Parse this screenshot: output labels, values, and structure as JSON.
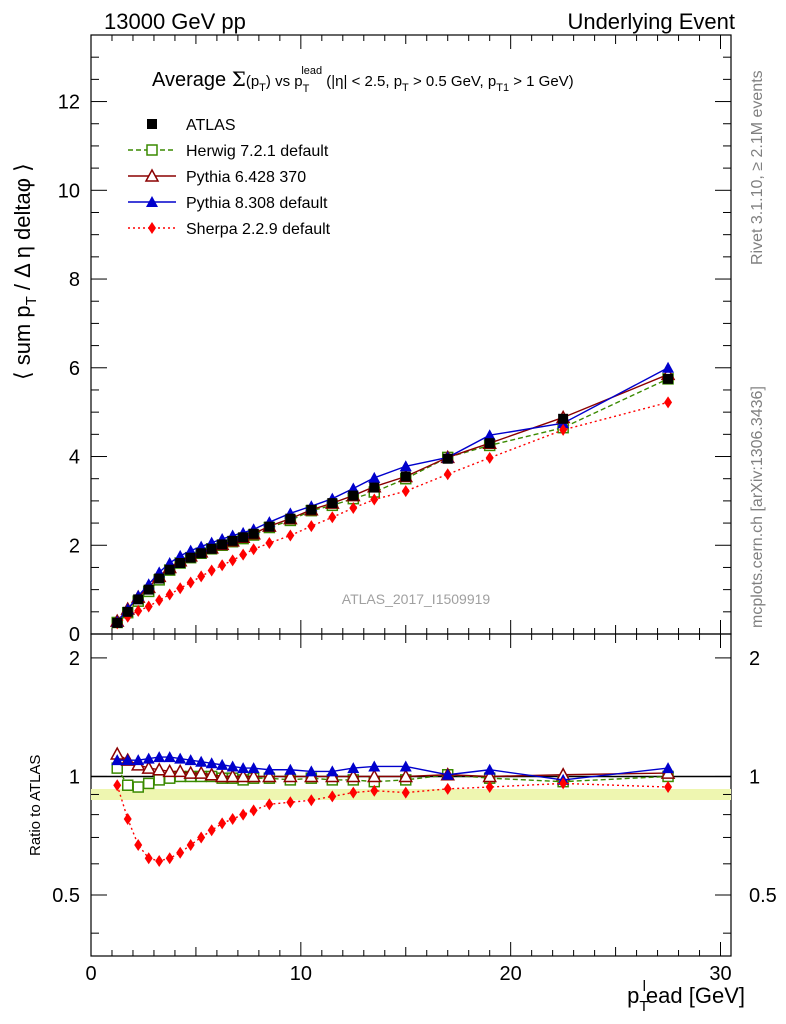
{
  "header": {
    "energy_label": "13000 GeV pp",
    "process_label": "Underlying Event"
  },
  "side_labels": {
    "rivet": "Rivet 3.1.10, ≥ 2.1M events",
    "mcplots": "mcplots.cern.ch [arXiv:1306.3436]"
  },
  "watermark": "ATLAS_2017_I1509919",
  "chart_data": [
    {
      "type": "line",
      "title": "Average Σ(p_T) vs p_T^lead (|η| < 2.5, p_T > 0.5 GeV, p_T1 > 1 GeV)",
      "title_parts": {
        "a": "Average ",
        "sigma": "Σ",
        "b": "(p",
        "b_sub": "T",
        "c": ") vs p",
        "c_sub": "T",
        "c_sup": "lead",
        "d": " (|η| < 2.5, p",
        "d_sub": "T",
        "e": " > 0.5 GeV, p",
        "e_sub": "T1",
        "f": " > 1 GeV)"
      },
      "ylabel": "⟨ sum p_T / Δη deltaφ ⟩",
      "ylabel_parts": {
        "a": "⟨ sum p",
        "sub": "T",
        "b": " / Δ η deltaφ ⟩"
      },
      "xlim": [
        0,
        30.5
      ],
      "ylim": [
        0,
        13.5
      ],
      "yticks": [
        0,
        2,
        4,
        6,
        8,
        10,
        12
      ],
      "legend_position": "top-left",
      "x": [
        1.25,
        1.75,
        2.25,
        2.75,
        3.25,
        3.75,
        4.25,
        4.75,
        5.25,
        5.75,
        6.25,
        6.75,
        7.25,
        7.75,
        8.5,
        9.5,
        10.5,
        11.5,
        12.5,
        13.5,
        15.0,
        17.0,
        19.0,
        22.5,
        27.5
      ],
      "series": [
        {
          "name": "ATLAS",
          "color": "#000000",
          "marker": "square-filled",
          "values": [
            0.25,
            0.5,
            0.78,
            1.0,
            1.25,
            1.45,
            1.6,
            1.72,
            1.82,
            1.92,
            2.02,
            2.1,
            2.18,
            2.26,
            2.42,
            2.6,
            2.8,
            2.95,
            3.12,
            3.3,
            3.55,
            3.95,
            4.3,
            4.85,
            5.75
          ]
        },
        {
          "name": "Herwig 7.2.1 default",
          "color": "#3a8a00",
          "marker": "square-open",
          "line": "dashed",
          "values": [
            0.26,
            0.48,
            0.74,
            0.96,
            1.22,
            1.44,
            1.6,
            1.72,
            1.82,
            1.92,
            2.0,
            2.08,
            2.15,
            2.23,
            2.4,
            2.56,
            2.78,
            2.9,
            3.05,
            3.2,
            3.5,
            3.98,
            4.25,
            4.65,
            5.75
          ]
        },
        {
          "name": "Pythia 6.428 370",
          "color": "#8b0000",
          "marker": "triangle-open",
          "line": "solid",
          "values": [
            0.29,
            0.56,
            0.83,
            1.05,
            1.3,
            1.5,
            1.65,
            1.76,
            1.85,
            1.94,
            2.02,
            2.1,
            2.18,
            2.26,
            2.43,
            2.6,
            2.8,
            2.95,
            3.12,
            3.32,
            3.55,
            3.98,
            4.3,
            4.88,
            5.85
          ]
        },
        {
          "name": "Pythia 8.308 default",
          "color": "#0000cc",
          "marker": "triangle-filled",
          "line": "solid",
          "values": [
            0.28,
            0.56,
            0.86,
            1.12,
            1.39,
            1.6,
            1.76,
            1.88,
            1.97,
            2.06,
            2.14,
            2.22,
            2.28,
            2.36,
            2.52,
            2.72,
            2.88,
            3.05,
            3.28,
            3.52,
            3.78,
            3.98,
            4.48,
            4.75,
            6.0
          ]
        },
        {
          "name": "Sherpa 2.2.9 default",
          "color": "#ff0000",
          "marker": "diamond-filled",
          "line": "dotted",
          "values": [
            0.24,
            0.39,
            0.52,
            0.62,
            0.76,
            0.89,
            1.03,
            1.16,
            1.3,
            1.43,
            1.55,
            1.66,
            1.79,
            1.91,
            2.05,
            2.22,
            2.43,
            2.63,
            2.84,
            3.03,
            3.22,
            3.6,
            3.97,
            4.6,
            5.22
          ]
        }
      ]
    },
    {
      "type": "line",
      "ylabel": "Ratio to ATLAS",
      "xlabel": "p_T^lead [GeV]",
      "xlabel_parts": {
        "a": "p",
        "sub": "T",
        "sup": "l",
        "b": "ead [GeV]"
      },
      "xlim": [
        0,
        30.5
      ],
      "xticks": [
        0,
        10,
        20,
        30
      ],
      "ylim": [
        0.35,
        2.3
      ],
      "yticks": [
        0.5,
        1,
        2
      ],
      "ylog": true,
      "x": [
        1.25,
        1.75,
        2.25,
        2.75,
        3.25,
        3.75,
        4.25,
        4.75,
        5.25,
        5.75,
        6.25,
        6.75,
        7.25,
        7.75,
        8.5,
        9.5,
        10.5,
        11.5,
        12.5,
        13.5,
        15.0,
        17.0,
        19.0,
        22.5,
        27.5
      ],
      "series": [
        {
          "name": "Herwig 7.2.1 default",
          "color": "#3a8a00",
          "values": [
            1.05,
            0.95,
            0.94,
            0.96,
            0.98,
            0.99,
            1.0,
            1.0,
            1.0,
            1.0,
            0.99,
            0.99,
            0.98,
            0.99,
            0.99,
            0.98,
            0.99,
            0.98,
            0.98,
            0.97,
            0.98,
            1.01,
            0.99,
            0.97,
            1.0
          ]
        },
        {
          "name": "Pythia 6.428 370",
          "color": "#8b0000",
          "values": [
            1.14,
            1.1,
            1.07,
            1.05,
            1.04,
            1.03,
            1.03,
            1.02,
            1.02,
            1.01,
            1.0,
            1.0,
            1.0,
            1.0,
            1.0,
            1.0,
            1.0,
            1.0,
            1.0,
            1.0,
            1.0,
            1.01,
            1.0,
            1.01,
            1.02
          ]
        },
        {
          "name": "Pythia 8.308 default",
          "color": "#0000cc",
          "values": [
            1.1,
            1.1,
            1.1,
            1.11,
            1.12,
            1.12,
            1.11,
            1.1,
            1.09,
            1.08,
            1.07,
            1.06,
            1.05,
            1.05,
            1.04,
            1.04,
            1.03,
            1.03,
            1.05,
            1.06,
            1.06,
            1.01,
            1.04,
            0.98,
            1.05
          ]
        },
        {
          "name": "Sherpa 2.2.9 default",
          "color": "#ff0000",
          "values": [
            0.95,
            0.78,
            0.67,
            0.62,
            0.61,
            0.62,
            0.64,
            0.67,
            0.7,
            0.73,
            0.76,
            0.78,
            0.8,
            0.82,
            0.85,
            0.86,
            0.87,
            0.89,
            0.91,
            0.92,
            0.91,
            0.93,
            0.94,
            0.96,
            0.94
          ]
        }
      ]
    }
  ]
}
